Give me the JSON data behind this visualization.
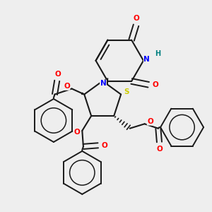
{
  "background_color": "#eeeeee",
  "bond_color": "#1a1a1a",
  "colors": {
    "O": "#ff0000",
    "N": "#0000ff",
    "S": "#cccc00",
    "H": "#008080",
    "C": "#1a1a1a"
  }
}
